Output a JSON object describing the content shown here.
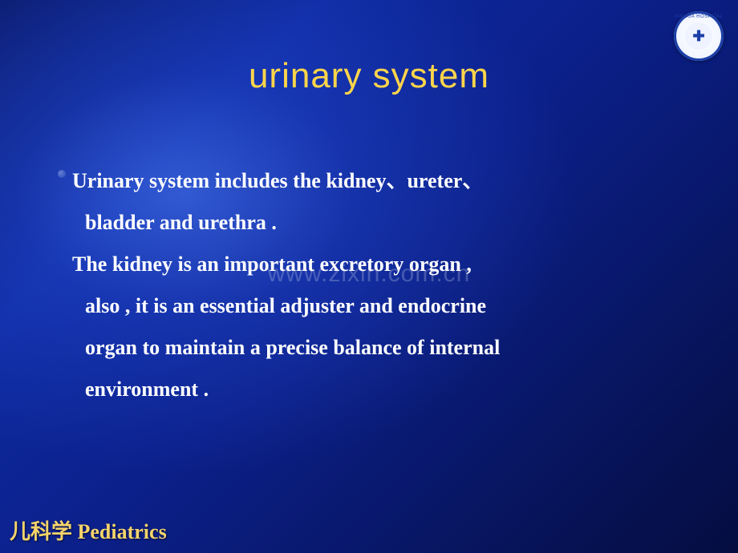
{
  "slide": {
    "title": "urinary system",
    "title_color": "#ffd54a",
    "title_fontsize": 44,
    "body_lines": [
      "Urinary system includes the  kidney、ureter、",
      "bladder and urethra .",
      "The kidney is an important excretory organ ,",
      "also , it is an essential adjuster and endocrine",
      "organ to maintain a precise balance of internal",
      "environment ."
    ],
    "body_color": "#ffffff",
    "body_fontsize": 26,
    "line_indent_flags": [
      false,
      true,
      false,
      true,
      true,
      true
    ],
    "watermark": "www.zixin.com.cn",
    "watermark_fontsize": 30,
    "footer": "儿科学 Pediatrics",
    "footer_fontsize": 26,
    "logo": {
      "ring_text": "XINHUA HOSPITAL",
      "glyph": "✚"
    },
    "background_colors": {
      "highlight": "#3a5ce0",
      "deep": "#050d40"
    }
  }
}
